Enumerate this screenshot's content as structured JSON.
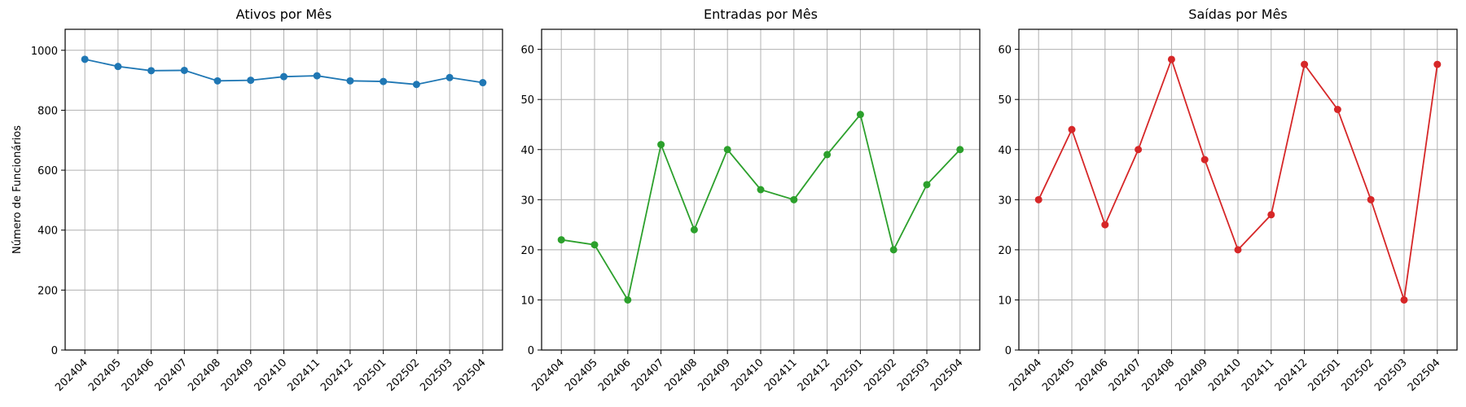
{
  "chart_data": [
    {
      "type": "line",
      "title": "Ativos por Mês",
      "xlabel": "",
      "ylabel": "Número de Funcionários",
      "categories": [
        "202404",
        "202405",
        "202406",
        "202407",
        "202408",
        "202409",
        "202410",
        "202411",
        "202412",
        "202501",
        "202502",
        "202503",
        "202504"
      ],
      "series": [
        {
          "values": [
            970,
            946,
            932,
            933,
            898,
            900,
            912,
            915,
            898,
            896,
            886,
            909,
            892
          ]
        }
      ],
      "ylim": [
        0,
        1070
      ],
      "yticks": [
        0,
        200,
        400,
        600,
        800,
        1000
      ],
      "color": "#1f77b4",
      "grid": true
    },
    {
      "type": "line",
      "title": "Entradas por Mês",
      "xlabel": "",
      "ylabel": "",
      "categories": [
        "202404",
        "202405",
        "202406",
        "202407",
        "202408",
        "202409",
        "202410",
        "202411",
        "202412",
        "202501",
        "202502",
        "202503",
        "202504"
      ],
      "series": [
        {
          "values": [
            22,
            21,
            10,
            41,
            24,
            40,
            32,
            30,
            39,
            47,
            20,
            33,
            40
          ]
        }
      ],
      "ylim": [
        0,
        64
      ],
      "yticks": [
        0,
        10,
        20,
        30,
        40,
        50,
        60
      ],
      "color": "#2ca02c",
      "grid": true
    },
    {
      "type": "line",
      "title": "Saídas por Mês",
      "xlabel": "",
      "ylabel": "",
      "categories": [
        "202404",
        "202405",
        "202406",
        "202407",
        "202408",
        "202409",
        "202410",
        "202411",
        "202412",
        "202501",
        "202502",
        "202503",
        "202504"
      ],
      "series": [
        {
          "values": [
            30,
            44,
            25,
            40,
            58,
            38,
            20,
            27,
            57,
            48,
            30,
            10,
            57
          ]
        }
      ],
      "ylim": [
        0,
        64
      ],
      "yticks": [
        0,
        10,
        20,
        30,
        40,
        50,
        60
      ],
      "color": "#d62728",
      "grid": true
    }
  ]
}
